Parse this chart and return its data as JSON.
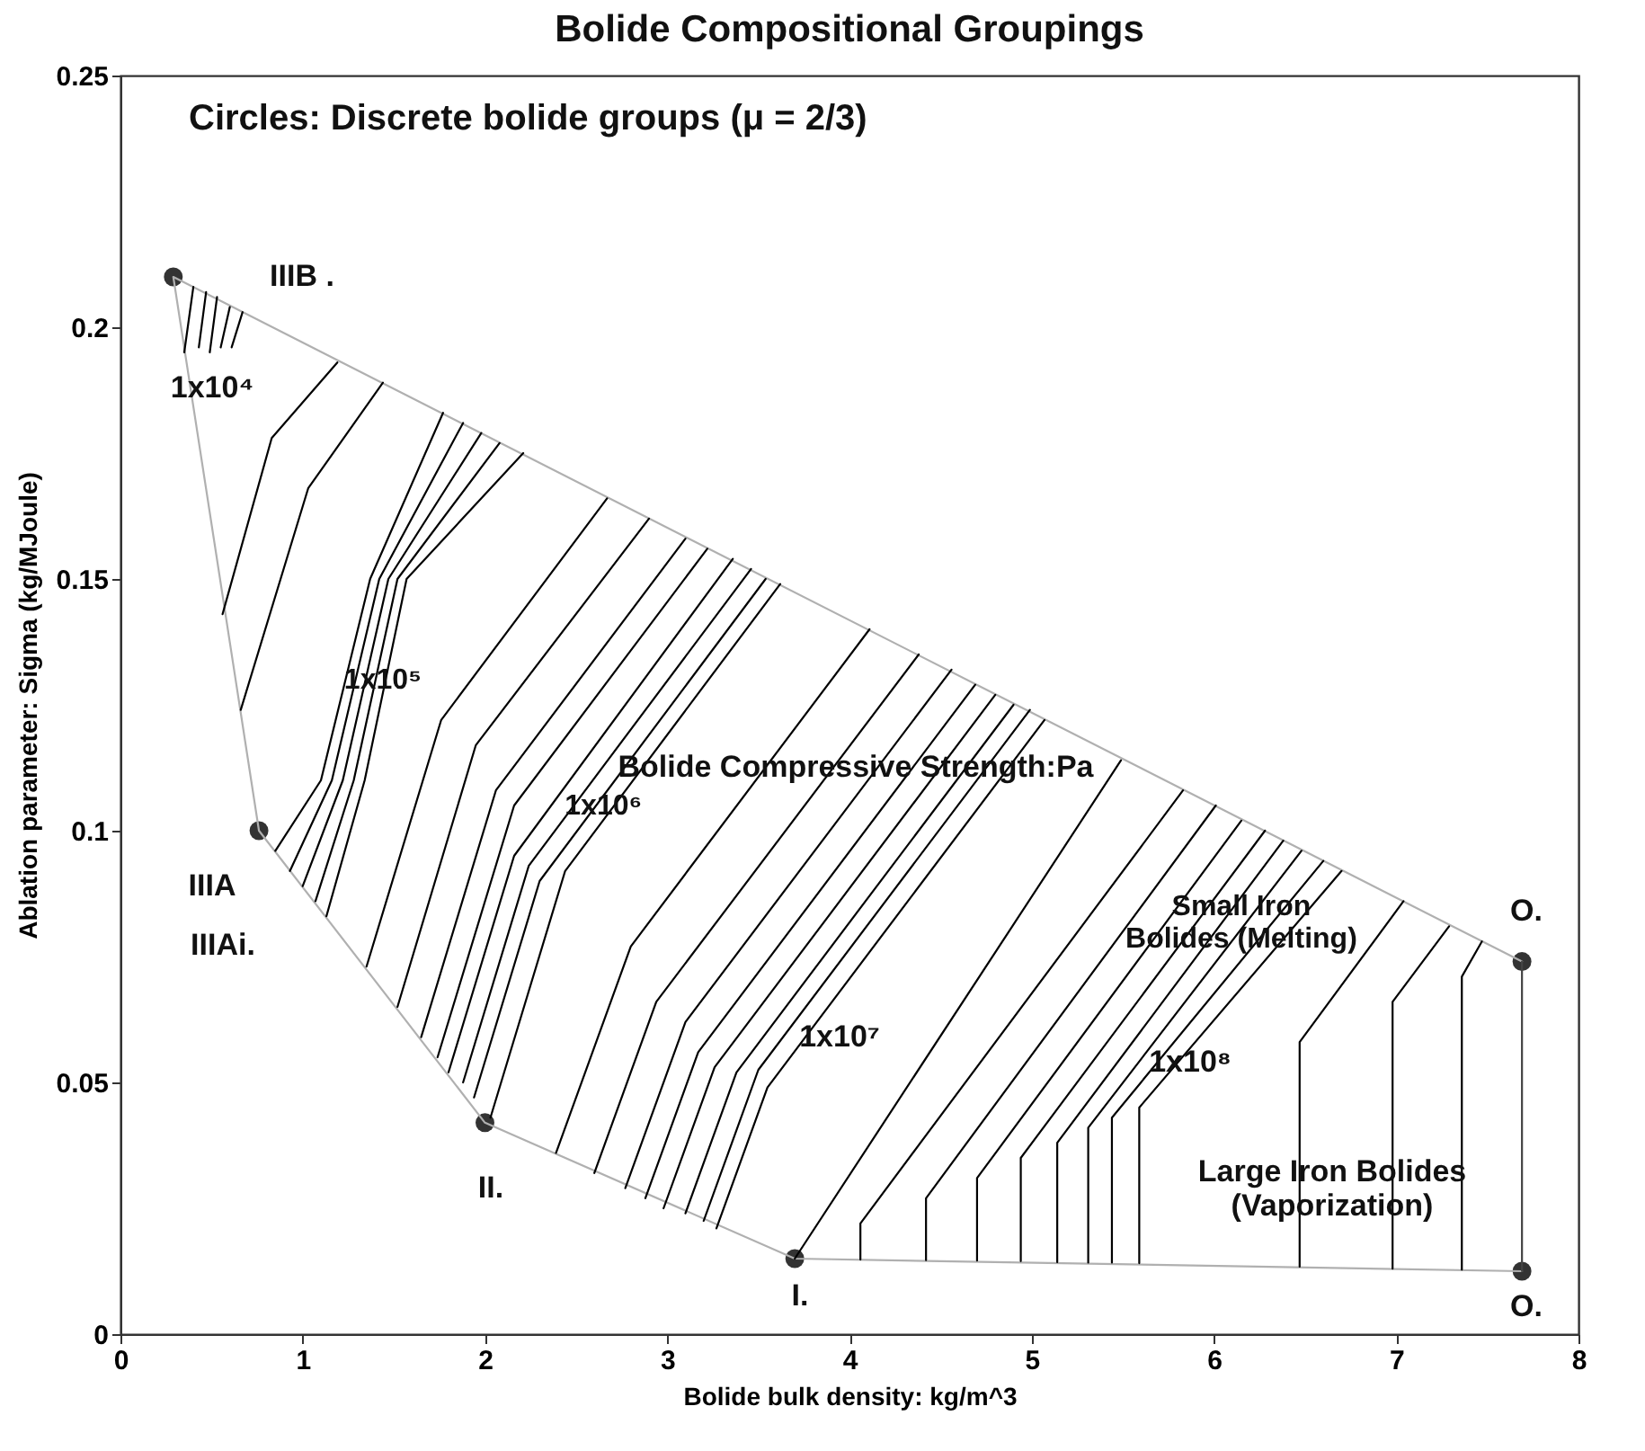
{
  "chart_data": {
    "type": "line",
    "title": "Bolide Compositional Groupings",
    "xlabel": "Bolide bulk density: kg/m^3",
    "ylabel": "Ablation parameter: Sigma (kg/MJoule)",
    "xlim": [
      0,
      8
    ],
    "ylim": [
      0,
      0.25
    ],
    "xticks": [
      0,
      1,
      2,
      3,
      4,
      5,
      6,
      7,
      8
    ],
    "yticks": [
      0,
      0.05,
      0.1,
      0.15,
      0.2,
      0.25
    ],
    "annotations": [
      "Circles: Discrete bolide groups (μ    = 2/3)",
      "IIIB .",
      "IIIA",
      "IIIAi.",
      "II.",
      "I.",
      "O.",
      "O.",
      "1x10⁴",
      {
        "text": "1x10⁵",
        "x": 1.44,
        "y": 0.13
      },
      {
        "text": "1x10⁶",
        "x": 2.65,
        "y": 0.105
      },
      "1x10⁷",
      "1x10⁸",
      "Bolide Compressive Strength:Pa",
      {
        "text": "Small Iron\nBolides (Melting)",
        "x": 6.15,
        "y": 0.085
      },
      "Large Iron Bolides\n(Vaporization)"
    ],
    "series": [
      {
        "color": "#b0b0b0",
        "x": [
          7.69,
          3.7,
          2.0,
          0.76,
          0.29,
          7.69
        ],
        "values": [
          0.0125,
          0.015,
          0.042,
          0.1,
          0.21,
          0.074
        ]
      },
      {
        "color": "#444444",
        "x": [
          7.69,
          7.69
        ],
        "values": [
          0.074,
          0.0125
        ]
      },
      {
        "color": "#000000",
        "x": [
          0.4,
          0.35
        ],
        "values": [
          0.208,
          0.195
        ]
      },
      {
        "color": "#000000",
        "x": [
          0.47,
          0.43
        ],
        "values": [
          0.207,
          0.196
        ]
      },
      {
        "color": "#000000",
        "x": [
          0.53,
          0.49
        ],
        "values": [
          0.206,
          0.195
        ]
      },
      {
        "color": "#000000",
        "x": [
          0.6,
          0.55
        ],
        "values": [
          0.204,
          0.196
        ]
      },
      {
        "color": "#000000",
        "x": [
          0.67,
          0.61
        ],
        "values": [
          0.203,
          0.196
        ]
      },
      {
        "color": "#000000",
        "x": [
          1.19,
          0.83,
          0.56
        ],
        "values": [
          0.193,
          0.178,
          0.143
        ]
      },
      {
        "color": "#000000",
        "x": [
          1.44,
          1.03,
          0.66
        ],
        "values": [
          0.189,
          0.168,
          0.124
        ]
      },
      {
        "color": "#000000",
        "x": [
          1.77,
          1.37,
          1.1,
          0.85
        ],
        "values": [
          0.183,
          0.15,
          0.11,
          0.096
        ]
      },
      {
        "color": "#000000",
        "x": [
          1.88,
          1.42,
          1.16,
          0.93
        ],
        "values": [
          0.181,
          0.15,
          0.11,
          0.092
        ]
      },
      {
        "color": "#000000",
        "x": [
          1.98,
          1.47,
          1.22,
          1.0
        ],
        "values": [
          0.179,
          0.15,
          0.11,
          0.089
        ]
      },
      {
        "color": "#000000",
        "x": [
          2.08,
          1.52,
          1.28,
          1.07
        ],
        "values": [
          0.177,
          0.15,
          0.11,
          0.086
        ]
      },
      {
        "color": "#000000",
        "x": [
          2.21,
          1.57,
          1.34,
          1.13
        ],
        "values": [
          0.175,
          0.15,
          0.11,
          0.083
        ]
      },
      {
        "color": "#000000",
        "x": [
          1.35,
          1.76,
          2.67
        ],
        "values": [
          0.073,
          0.122,
          0.166
        ]
      },
      {
        "color": "#000000",
        "x": [
          1.52,
          1.95,
          2.9
        ],
        "values": [
          0.065,
          0.117,
          0.162
        ]
      },
      {
        "color": "#000000",
        "x": [
          1.65,
          2.06,
          3.1
        ],
        "values": [
          0.059,
          0.108,
          0.158
        ]
      },
      {
        "color": "#000000",
        "x": [
          1.74,
          2.16,
          3.22
        ],
        "values": [
          0.055,
          0.105,
          0.156
        ]
      },
      {
        "color": "#000000",
        "x": [
          1.8,
          2.16,
          3.36
        ],
        "values": [
          0.052,
          0.095,
          0.154
        ]
      },
      {
        "color": "#000000",
        "x": [
          1.88,
          2.24,
          3.46
        ],
        "values": [
          0.05,
          0.093,
          0.152
        ]
      },
      {
        "color": "#000000",
        "x": [
          1.94,
          2.3,
          3.54
        ],
        "values": [
          0.047,
          0.09,
          0.15
        ]
      },
      {
        "color": "#000000",
        "x": [
          2.03,
          2.44,
          3.62
        ],
        "values": [
          0.043,
          0.092,
          0.149
        ]
      },
      {
        "color": "#000000",
        "x": [
          2.39,
          2.8,
          4.11
        ],
        "values": [
          0.036,
          0.077,
          0.14
        ]
      },
      {
        "color": "#000000",
        "x": [
          2.6,
          2.94,
          4.38
        ],
        "values": [
          0.032,
          0.066,
          0.135
        ]
      },
      {
        "color": "#000000",
        "x": [
          2.77,
          3.1,
          4.56
        ],
        "values": [
          0.029,
          0.062,
          0.132
        ]
      },
      {
        "color": "#000000",
        "x": [
          2.88,
          3.17,
          4.69
        ],
        "values": [
          0.027,
          0.056,
          0.129
        ]
      },
      {
        "color": "#000000",
        "x": [
          2.98,
          3.26,
          4.8
        ],
        "values": [
          0.025,
          0.053,
          0.127
        ]
      },
      {
        "color": "#000000",
        "x": [
          3.1,
          3.38,
          4.9
        ],
        "values": [
          0.024,
          0.052,
          0.125
        ]
      },
      {
        "color": "#000000",
        "x": [
          3.2,
          3.5,
          4.99
        ],
        "values": [
          0.0225,
          0.0525,
          0.124
        ]
      },
      {
        "color": "#000000",
        "x": [
          3.27,
          3.55,
          5.07
        ],
        "values": [
          0.021,
          0.049,
          0.122
        ]
      },
      {
        "color": "#000000",
        "x": [
          3.7,
          5.49
        ],
        "values": [
          0.015,
          0.114
        ]
      },
      {
        "color": "#000000",
        "x": [
          4.06,
          4.06,
          5.83
        ],
        "values": [
          0.0148,
          0.022,
          0.108
        ]
      },
      {
        "color": "#000000",
        "x": [
          4.42,
          4.42,
          6.01
        ],
        "values": [
          0.0147,
          0.027,
          0.105
        ]
      },
      {
        "color": "#000000",
        "x": [
          4.7,
          4.7,
          6.15
        ],
        "values": [
          0.0146,
          0.031,
          0.102
        ]
      },
      {
        "color": "#000000",
        "x": [
          4.94,
          4.94,
          6.28
        ],
        "values": [
          0.0145,
          0.035,
          0.1
        ]
      },
      {
        "color": "#000000",
        "x": [
          5.14,
          5.14,
          6.38
        ],
        "values": [
          0.0143,
          0.038,
          0.098
        ]
      },
      {
        "color": "#000000",
        "x": [
          5.31,
          5.31,
          6.48
        ],
        "values": [
          0.0142,
          0.041,
          0.096
        ]
      },
      {
        "color": "#000000",
        "x": [
          5.44,
          5.44,
          6.6
        ],
        "values": [
          0.0142,
          0.043,
          0.094
        ]
      },
      {
        "color": "#000000",
        "x": [
          5.59,
          5.59,
          6.7
        ],
        "values": [
          0.0141,
          0.045,
          0.092
        ]
      },
      {
        "color": "#000000",
        "x": [
          6.47,
          6.47,
          7.04
        ],
        "values": [
          0.0134,
          0.058,
          0.086
        ]
      },
      {
        "color": "#000000",
        "x": [
          6.98,
          6.98,
          7.29
        ],
        "values": [
          0.013,
          0.066,
          0.081
        ]
      },
      {
        "color": "#000000",
        "x": [
          7.36,
          7.36,
          7.47
        ],
        "values": [
          0.0128,
          0.071,
          0.078
        ]
      },
      {
        "type": "scatter",
        "marker": "circle",
        "color": "#333333",
        "x": [
          0.29,
          0.76,
          2.0,
          3.7,
          7.69,
          7.69
        ],
        "values": [
          0.21,
          0.1,
          0.042,
          0.015,
          0.074,
          0.0125
        ]
      }
    ]
  }
}
